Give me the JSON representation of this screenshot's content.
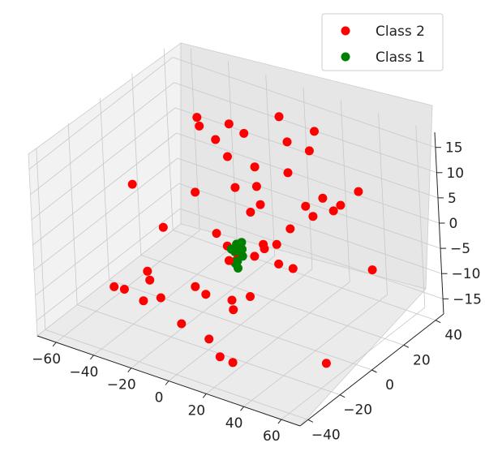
{
  "chart_data": {
    "type": "scatter",
    "projection": "3d",
    "grid": true,
    "legend_position": "top-right",
    "xlim": [
      -70,
      70
    ],
    "ylim": [
      -45,
      45
    ],
    "zlim": [
      -18,
      18
    ],
    "x_ticks": [
      "−60",
      "−40",
      "−20",
      "0",
      "20",
      "40",
      "60"
    ],
    "y_ticks": [
      "−40",
      "−20",
      "0",
      "20",
      "40"
    ],
    "z_ticks": [
      "15",
      "10",
      "5",
      "0",
      "−5",
      "−10",
      "−15"
    ],
    "series": [
      {
        "name": "Class 2",
        "color": "#ff0000",
        "points": [
          [
            -62,
            8,
            0
          ],
          [
            -45,
            30,
            10
          ],
          [
            -40,
            35,
            5
          ],
          [
            -35,
            38,
            8
          ],
          [
            -50,
            12,
            -8
          ],
          [
            -35,
            20,
            12
          ],
          [
            -25,
            25,
            6
          ],
          [
            -20,
            30,
            10
          ],
          [
            -5,
            35,
            14
          ],
          [
            5,
            28,
            12
          ],
          [
            15,
            30,
            11
          ],
          [
            20,
            28,
            16
          ],
          [
            10,
            22,
            8
          ],
          [
            25,
            15,
            5
          ],
          [
            30,
            20,
            6
          ],
          [
            35,
            25,
            4
          ],
          [
            -10,
            25,
            2
          ],
          [
            -5,
            15,
            0
          ],
          [
            5,
            10,
            4
          ],
          [
            -30,
            10,
            2
          ],
          [
            -15,
            5,
            -3
          ],
          [
            10,
            5,
            -2
          ],
          [
            15,
            0,
            -1
          ],
          [
            20,
            2,
            0
          ],
          [
            25,
            -3,
            -2
          ],
          [
            35,
            8,
            6
          ],
          [
            -5,
            0,
            -3
          ],
          [
            0,
            -5,
            -4
          ],
          [
            5,
            5,
            -5
          ],
          [
            -40,
            -10,
            -10
          ],
          [
            -30,
            -20,
            -8
          ],
          [
            -20,
            -25,
            -9
          ],
          [
            -10,
            -15,
            -8
          ],
          [
            0,
            -20,
            -7
          ],
          [
            5,
            -10,
            -10
          ],
          [
            15,
            -10,
            -8
          ],
          [
            10,
            -15,
            -10
          ],
          [
            -45,
            -25,
            -10
          ],
          [
            -35,
            -30,
            -8
          ],
          [
            -25,
            -30,
            -9
          ],
          [
            -5,
            -30,
            -11
          ],
          [
            5,
            -25,
            -14
          ],
          [
            15,
            -30,
            -15
          ],
          [
            20,
            -28,
            -16
          ],
          [
            55,
            20,
            -5
          ],
          [
            50,
            -5,
            -18
          ],
          [
            0,
            0,
            -5
          ],
          [
            25,
            5,
            3
          ],
          [
            -10,
            12,
            5
          ],
          [
            40,
            15,
            6
          ],
          [
            30,
            0,
            -3
          ],
          [
            -15,
            30,
            4
          ],
          [
            45,
            25,
            8
          ]
        ]
      },
      {
        "name": "Class 1",
        "color": "#008000",
        "points": [
          [
            0,
            0,
            -2
          ],
          [
            2,
            1,
            -3
          ],
          [
            -2,
            1,
            -4
          ],
          [
            1,
            -1,
            -5
          ],
          [
            0,
            2,
            -3
          ],
          [
            -1,
            0,
            -6
          ],
          [
            3,
            0,
            -4
          ],
          [
            0,
            -2,
            -5
          ],
          [
            1,
            2,
            -2
          ],
          [
            -2,
            -1,
            -3
          ],
          [
            2,
            -2,
            -6
          ],
          [
            -1,
            2,
            -4
          ]
        ]
      }
    ]
  }
}
